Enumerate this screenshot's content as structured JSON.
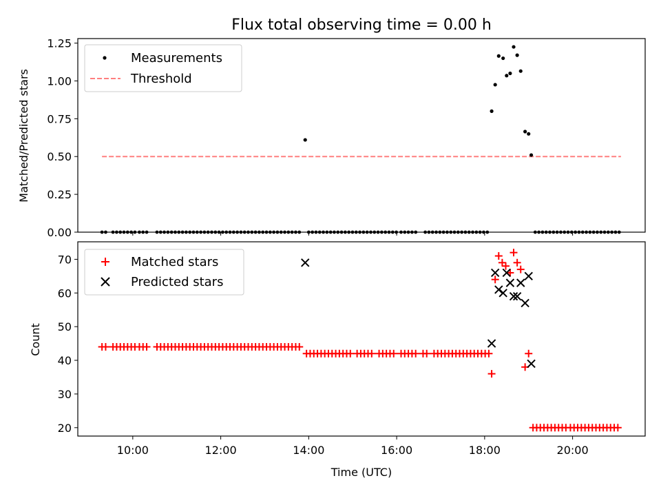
{
  "chart_data": {
    "type": "scatter",
    "title": "Flux total observing time = 0.00 h",
    "xlabel": "Time (UTC)",
    "x_tick_labels": [
      "10:00",
      "12:00",
      "14:00",
      "16:00",
      "18:00",
      "20:00"
    ],
    "x_ticks_hours": [
      10,
      12,
      14,
      16,
      18,
      20
    ],
    "xlim_hours": [
      8.75,
      21.65
    ],
    "top_panel": {
      "ylabel": "Matched/Predicted stars",
      "ylim": [
        0,
        1.28
      ],
      "y_ticks": [
        0,
        0.25,
        0.5,
        0.75,
        1.0,
        1.25
      ],
      "y_tick_labels": [
        "0.00",
        "0.25",
        "0.50",
        "0.75",
        "1.00",
        "1.25"
      ],
      "legend": [
        {
          "name": "Measurements",
          "marker": "dot",
          "color": "#000000"
        },
        {
          "name": "Threshold",
          "marker": "dashed-line",
          "color": "#ff7f7f"
        }
      ],
      "threshold": {
        "value": 0.5,
        "x_start": 9.3,
        "x_end": 21.1
      },
      "measurements": [
        {
          "x": 13.92,
          "y": 0.61
        },
        {
          "x": 18.16,
          "y": 0.8
        },
        {
          "x": 18.24,
          "y": 0.975
        },
        {
          "x": 18.32,
          "y": 1.165
        },
        {
          "x": 18.42,
          "y": 1.15
        },
        {
          "x": 18.5,
          "y": 1.035
        },
        {
          "x": 18.58,
          "y": 1.05
        },
        {
          "x": 18.66,
          "y": 1.225
        },
        {
          "x": 18.74,
          "y": 1.17
        },
        {
          "x": 18.82,
          "y": 1.065
        },
        {
          "x": 18.92,
          "y": 0.665
        },
        {
          "x": 19.0,
          "y": 0.65
        },
        {
          "x": 19.06,
          "y": 0.51
        }
      ],
      "zero_ranges": [
        [
          9.3,
          9.45
        ],
        [
          9.55,
          10.05
        ],
        [
          10.15,
          10.35
        ],
        [
          10.55,
          13.85
        ],
        [
          14.0,
          16.0
        ],
        [
          16.1,
          16.5
        ],
        [
          16.65,
          18.1
        ],
        [
          19.15,
          21.1
        ]
      ],
      "zero_step": 0.083
    },
    "bottom_panel": {
      "ylabel": "Count",
      "ylim": [
        17.5,
        75.2
      ],
      "y_ticks": [
        20,
        30,
        40,
        50,
        60,
        70
      ],
      "y_tick_labels": [
        "20",
        "30",
        "40",
        "50",
        "60",
        "70"
      ],
      "legend": [
        {
          "name": "Matched stars",
          "marker": "plus",
          "color": "#ff0000"
        },
        {
          "name": "Predicted stars",
          "marker": "x",
          "color": "#000000"
        }
      ],
      "matched_runs": [
        {
          "value": 44,
          "ranges": [
            [
              9.3,
              9.45
            ],
            [
              9.55,
              10.05
            ],
            [
              10.15,
              10.35
            ],
            [
              10.55,
              13.85
            ]
          ]
        },
        {
          "value": 42,
          "ranges": [
            [
              13.95,
              15.0
            ],
            [
              15.1,
              15.5
            ],
            [
              15.6,
              16.0
            ],
            [
              16.1,
              16.5
            ],
            [
              16.6,
              16.7
            ],
            [
              16.85,
              18.1
            ]
          ]
        },
        {
          "value": 20,
          "ranges": [
            [
              19.1,
              19.85
            ],
            [
              19.95,
              21.1
            ]
          ]
        }
      ],
      "matched_step": 0.083,
      "matched_extra": [
        {
          "x": 18.16,
          "y": 36
        },
        {
          "x": 18.24,
          "y": 64
        },
        {
          "x": 18.32,
          "y": 71
        },
        {
          "x": 18.4,
          "y": 69
        },
        {
          "x": 18.48,
          "y": 68
        },
        {
          "x": 18.58,
          "y": 66
        },
        {
          "x": 18.66,
          "y": 72
        },
        {
          "x": 18.74,
          "y": 69
        },
        {
          "x": 18.82,
          "y": 67
        },
        {
          "x": 18.92,
          "y": 38
        },
        {
          "x": 19.0,
          "y": 42
        }
      ],
      "predicted": [
        {
          "x": 13.92,
          "y": 69
        },
        {
          "x": 18.16,
          "y": 45
        },
        {
          "x": 18.24,
          "y": 66
        },
        {
          "x": 18.32,
          "y": 61
        },
        {
          "x": 18.42,
          "y": 60
        },
        {
          "x": 18.5,
          "y": 66
        },
        {
          "x": 18.58,
          "y": 63
        },
        {
          "x": 18.66,
          "y": 59
        },
        {
          "x": 18.74,
          "y": 59
        },
        {
          "x": 18.82,
          "y": 63
        },
        {
          "x": 18.92,
          "y": 57
        },
        {
          "x": 19.0,
          "y": 65
        },
        {
          "x": 19.06,
          "y": 39
        }
      ]
    }
  }
}
